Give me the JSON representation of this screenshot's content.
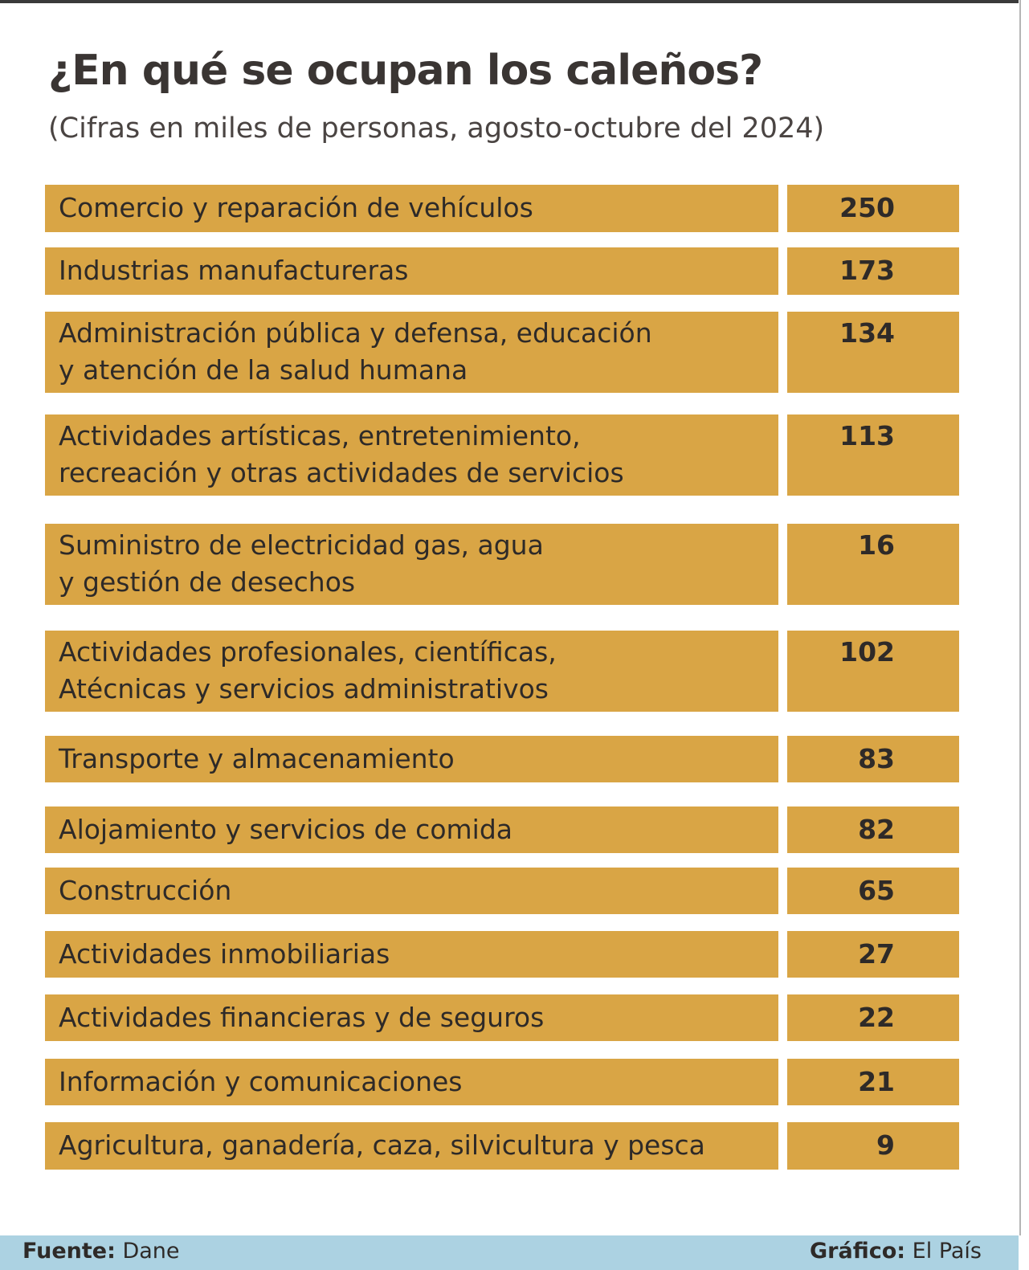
{
  "header": {
    "title": "¿En qué se ocupan los caleños?",
    "subtitle": "(Cifras en miles de personas, agosto-octubre del 2024)"
  },
  "chart_data": {
    "type": "table",
    "title": "¿En qué se ocupan los caleños?",
    "subtitle": "(Cifras en miles de personas, agosto-octubre del 2024)",
    "unit": "miles de personas",
    "categories": [
      "Comercio y reparación de vehículos",
      "Industrias manufactureras",
      "Administración pública y defensa, educación\ny atención de la salud humana",
      "Actividades artísticas, entretenimiento,\nrecreación y otras actividades de servicios",
      "Suministro de electricidad gas, agua\ny gestión de desechos",
      "Actividades profesionales, científicas,\nAtécnicas y servicios administrativos",
      "Transporte y almacenamiento",
      "Alojamiento y servicios de comida",
      "Construcción",
      "Actividades inmobiliarias",
      "Actividades financieras y de seguros",
      "Información y comunicaciones",
      "Agricultura, ganadería, caza, silvicultura y pesca"
    ],
    "values": [
      250,
      173,
      134,
      113,
      16,
      102,
      83,
      82,
      65,
      27,
      22,
      21,
      9
    ]
  },
  "footer": {
    "source_label": "Fuente:",
    "source_value": "Dane",
    "credit_label": "Gráfico:",
    "credit_value": "El País"
  },
  "colors": {
    "cell_fill": "#d9a545",
    "footer_band": "#acd2e2",
    "text": "#3a3533"
  }
}
